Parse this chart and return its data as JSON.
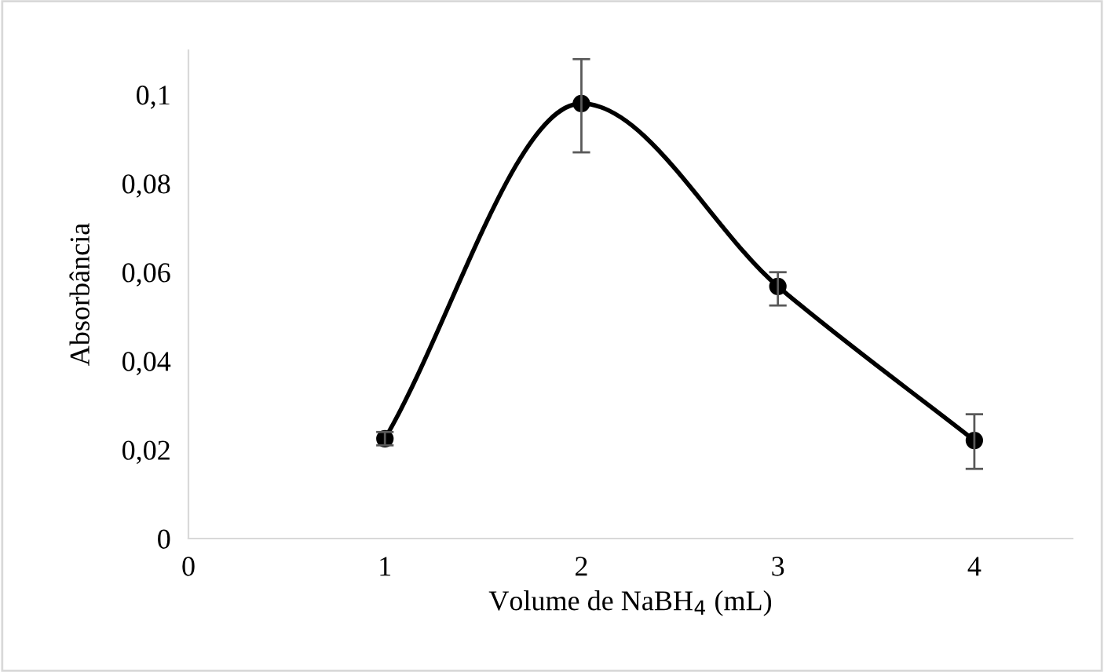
{
  "chart_data": {
    "type": "line",
    "xlabel": "Volume de NaBH$_{4}$ (mL)",
    "ylabel": "Absorbância",
    "x": [
      1,
      2,
      3,
      4
    ],
    "series": [
      {
        "color": "#000000",
        "values": [
          0.0225,
          0.098,
          0.0568,
          0.0221
        ],
        "errors": [
          0.0015,
          [
            0.087,
            0.108
          ],
          [
            0.0525,
            0.06
          ],
          [
            0.0157,
            0.028
          ]
        ]
      }
    ],
    "xlim": [
      0,
      4.5
    ],
    "xticks": [
      0,
      1,
      2,
      3,
      4
    ],
    "ylim": [
      0,
      0.11
    ],
    "yticks": [
      {
        "value": 0,
        "label": "0"
      },
      {
        "value": 0.02,
        "label": "0,02"
      },
      {
        "value": 0.04,
        "label": "0,04"
      },
      {
        "value": 0.06,
        "label": "0,06"
      },
      {
        "value": 0.08,
        "label": "0,08"
      },
      {
        "value": 0.1,
        "label": "0,1"
      }
    ],
    "marker": "circle",
    "line_style": "solid",
    "grid": false,
    "legend": false
  }
}
